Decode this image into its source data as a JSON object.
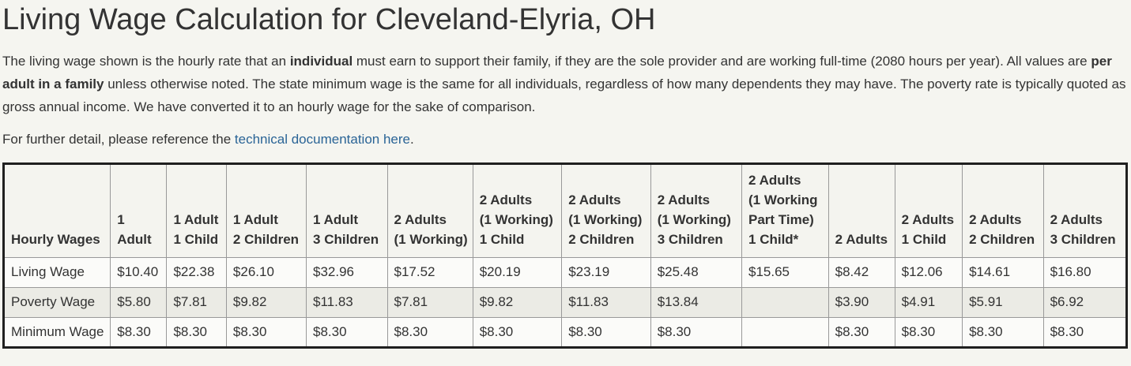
{
  "page": {
    "title": "Living Wage Calculation for Cleveland-Elyria, OH"
  },
  "intro": {
    "segments": [
      {
        "text": "The living wage shown is the hourly rate that an ",
        "bold": false
      },
      {
        "text": "individual",
        "bold": true
      },
      {
        "text": " must earn to support their family, if they are the sole provider and are working full-time (2080 hours per year). All values are ",
        "bold": false
      },
      {
        "text": "per adult in a family",
        "bold": true
      },
      {
        "text": " unless otherwise noted. The state minimum wage is the same for all individuals, regardless of how many dependents they may have. The poverty rate is typically quoted as gross annual income. We have converted it to an hourly wage for the sake of comparison.",
        "bold": false
      }
    ]
  },
  "detail": {
    "prefix": "For further detail, please reference the ",
    "link_text": "technical documentation here",
    "suffix": "."
  },
  "colors": {
    "background": "#f5f5f0",
    "text": "#333333",
    "link": "#2a6496",
    "outer_border": "#1f1f1f",
    "cell_border": "#999999",
    "row_plain": "#fbfbf9",
    "row_stripe": "#ebebe5"
  },
  "chart_data": {
    "type": "table",
    "title": "Living Wage Calculation for Cleveland-Elyria, OH",
    "columns": [
      "Hourly Wages",
      "1 Adult",
      "1 Adult\n1 Child",
      "1 Adult\n2 Children",
      "1 Adult\n3 Children",
      "2 Adults\n(1 Working)",
      "2 Adults\n(1 Working)\n1 Child",
      "2 Adults\n(1 Working)\n2 Children",
      "2 Adults\n(1 Working)\n3 Children",
      "2 Adults\n(1 Working\nPart Time)\n1 Child*",
      "2 Adults",
      "2 Adults\n1 Child",
      "2 Adults\n2 Children",
      "2 Adults\n3 Children"
    ],
    "rows": [
      {
        "label": "Living Wage",
        "values": [
          "$10.40",
          "$22.38",
          "$26.10",
          "$32.96",
          "$17.52",
          "$20.19",
          "$23.19",
          "$25.48",
          "$15.65",
          "$8.42",
          "$12.06",
          "$14.61",
          "$16.80"
        ]
      },
      {
        "label": "Poverty Wage",
        "values": [
          "$5.80",
          "$7.81",
          "$9.82",
          "$11.83",
          "$7.81",
          "$9.82",
          "$11.83",
          "$13.84",
          "",
          "$3.90",
          "$4.91",
          "$5.91",
          "$6.92"
        ]
      },
      {
        "label": "Minimum Wage",
        "values": [
          "$8.30",
          "$8.30",
          "$8.30",
          "$8.30",
          "$8.30",
          "$8.30",
          "$8.30",
          "$8.30",
          "",
          "$8.30",
          "$8.30",
          "$8.30",
          "$8.30"
        ]
      }
    ]
  }
}
